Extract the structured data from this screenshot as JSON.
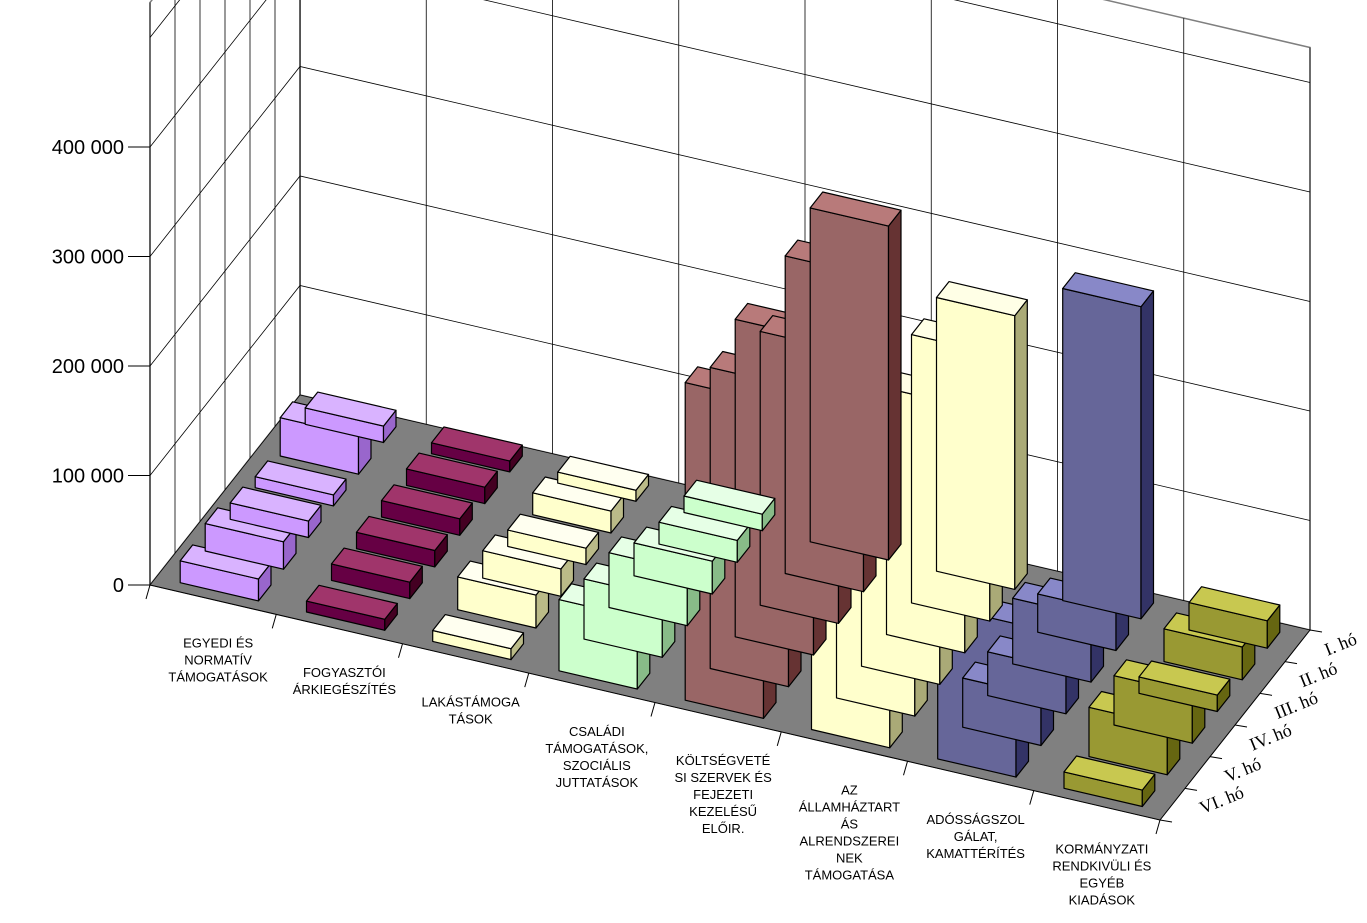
{
  "chart_data": {
    "type": "bar",
    "title": "",
    "xlabel": "",
    "ylabel": "",
    "ylim": [
      0,
      400000
    ],
    "yticks": [
      "0",
      "100 000",
      "200 000",
      "300 000",
      "400 000"
    ],
    "grid": true,
    "categories": [
      [
        "EGYEDI ÉS",
        "NORMATÍV",
        "TÁMOGATÁSOK"
      ],
      [
        "FOGYASZTÓI",
        "ÁRKIEGÉSZÍTÉS"
      ],
      [
        "LAKÁSTÁMOGA",
        "TÁSOK"
      ],
      [
        "CSALÁDI",
        "TÁMOGATÁSOK,",
        "SZOCIÁLIS",
        "JUTTATÁSOK"
      ],
      [
        "KÖLTSÉGVETÉ",
        "SI SZERVEK ÉS",
        "FEJEZETI",
        "KEZELÉSŰ",
        "ELŐIR."
      ],
      [
        "AZ",
        "ÁLLAMHÁZTART",
        "ÁS",
        "ALRENDSZEREI",
        "NEK",
        "TÁMOGATÁSA"
      ],
      [
        "ADÓSSÁGSZOL",
        "GÁLAT,",
        "KAMATTÉRÍTÉS"
      ],
      [
        "KORMÁNYZATI",
        "RENDKIVÜLI ÉS",
        "EGYÉB",
        "KIADÁSOK"
      ]
    ],
    "colors": {
      "top": [
        "#d9b3ff",
        "#a0356b",
        "#fffff0",
        "#e6ffe6",
        "#b87a7a",
        "#ffffe6",
        "#8888c8",
        "#c8c850"
      ],
      "front": [
        "#cc99ff",
        "#660044",
        "#ffffcc",
        "#ccffcc",
        "#996666",
        "#ffffcc",
        "#666699",
        "#999933"
      ],
      "side": [
        "#9966cc",
        "#440022",
        "#bbbb88",
        "#88bb88",
        "#663333",
        "#aaaa77",
        "#333366",
        "#666611"
      ]
    },
    "series": [
      {
        "name": "I. hó",
        "values": [
          15000,
          10000,
          10000,
          15000,
          305000,
          250000,
          285000,
          25000
        ]
      },
      {
        "name": "II. hó",
        "values": [
          35000,
          15000,
          20000,
          20000,
          290000,
          245000,
          35000,
          30000
        ]
      },
      {
        "name": "III. hó",
        "values": [
          10000,
          15000,
          15000,
          30000,
          250000,
          225000,
          60000,
          15000
        ]
      },
      {
        "name": "IV. hó",
        "values": [
          15000,
          15000,
          25000,
          50000,
          290000,
          225000,
          40000,
          45000
        ]
      },
      {
        "name": "V. hó",
        "values": [
          25000,
          15000,
          30000,
          55000,
          275000,
          200000,
          45000,
          45000
        ]
      },
      {
        "name": "VI. hó",
        "values": [
          20000,
          10000,
          10000,
          65000,
          290000,
          200000,
          140000,
          15000
        ]
      }
    ]
  }
}
